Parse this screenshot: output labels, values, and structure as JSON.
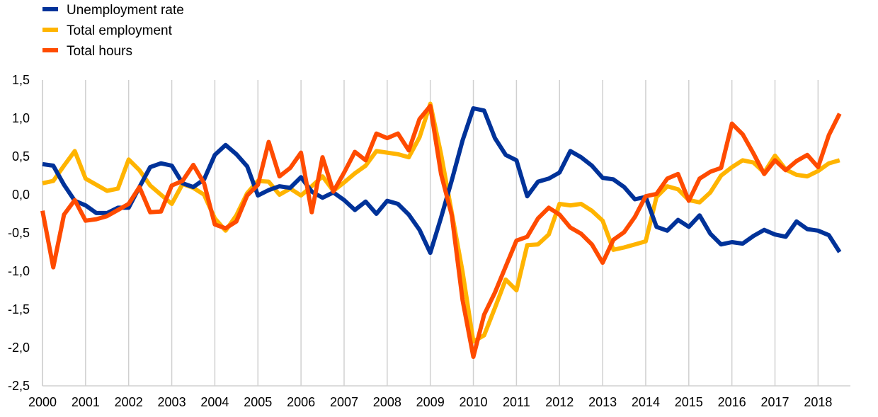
{
  "chart_data": {
    "type": "line",
    "title": "",
    "xlabel": "",
    "ylabel": "",
    "x_tick_labels": [
      "2000",
      "2001",
      "2002",
      "2003",
      "2004",
      "2005",
      "2006",
      "2007",
      "2008",
      "2009",
      "2010",
      "2011",
      "2012",
      "2013",
      "2014",
      "2015",
      "2016",
      "2017",
      "2018"
    ],
    "y_tick_labels": [
      "1,5",
      "1,0",
      "0,5",
      "0,0",
      "-0,5",
      "-1,0",
      "-1,5",
      "-2,0",
      "-2,5"
    ],
    "y_ticks": [
      1.5,
      1.0,
      0.5,
      0.0,
      -0.5,
      -1.0,
      -1.5,
      -2.0,
      -2.5
    ],
    "ylim": [
      -2.5,
      1.5
    ],
    "xlim": [
      2000.0,
      2018.75
    ],
    "grid": "vertical",
    "legend_position": "top-left",
    "x_quarters": [
      2000.0,
      2000.25,
      2000.5,
      2000.75,
      2001.0,
      2001.25,
      2001.5,
      2001.75,
      2002.0,
      2002.25,
      2002.5,
      2002.75,
      2003.0,
      2003.25,
      2003.5,
      2003.75,
      2004.0,
      2004.25,
      2004.5,
      2004.75,
      2005.0,
      2005.25,
      2005.5,
      2005.75,
      2006.0,
      2006.25,
      2006.5,
      2006.75,
      2007.0,
      2007.25,
      2007.5,
      2007.75,
      2008.0,
      2008.25,
      2008.5,
      2008.75,
      2009.0,
      2009.25,
      2009.5,
      2009.75,
      2010.0,
      2010.25,
      2010.5,
      2010.75,
      2011.0,
      2011.25,
      2011.5,
      2011.75,
      2012.0,
      2012.25,
      2012.5,
      2012.75,
      2013.0,
      2013.25,
      2013.5,
      2013.75,
      2014.0,
      2014.25,
      2014.5,
      2014.75,
      2015.0,
      2015.25,
      2015.5,
      2015.75,
      2016.0,
      2016.25,
      2016.5,
      2016.75,
      2017.0,
      2017.25,
      2017.5,
      2017.75,
      2018.0,
      2018.25,
      2018.5
    ],
    "series": [
      {
        "name": "Total employment",
        "color": "#FFB400",
        "values": [
          0.15,
          0.18,
          0.38,
          0.57,
          0.21,
          0.13,
          0.05,
          0.08,
          0.46,
          0.32,
          0.12,
          0.0,
          -0.12,
          0.14,
          0.09,
          0.0,
          -0.31,
          -0.47,
          -0.27,
          0.02,
          0.18,
          0.17,
          0.0,
          0.08,
          -0.01,
          0.11,
          0.24,
          0.05,
          0.16,
          0.28,
          0.38,
          0.57,
          0.55,
          0.53,
          0.49,
          0.75,
          1.19,
          0.53,
          -0.24,
          -1.01,
          -1.92,
          -1.84,
          -1.48,
          -1.11,
          -1.25,
          -0.66,
          -0.65,
          -0.52,
          -0.12,
          -0.14,
          -0.12,
          -0.21,
          -0.34,
          -0.72,
          -0.69,
          -0.65,
          -0.61,
          -0.03,
          0.11,
          0.07,
          -0.07,
          -0.1,
          0.03,
          0.25,
          0.36,
          0.45,
          0.42,
          0.29,
          0.51,
          0.33,
          0.26,
          0.24,
          0.31,
          0.41,
          0.45
        ]
      },
      {
        "name": "Unemployment rate",
        "color": "#003299",
        "values": [
          0.4,
          0.38,
          0.13,
          -0.08,
          -0.14,
          -0.24,
          -0.24,
          -0.17,
          -0.17,
          0.1,
          0.36,
          0.41,
          0.38,
          0.15,
          0.1,
          0.2,
          0.52,
          0.65,
          0.53,
          0.37,
          -0.01,
          0.06,
          0.11,
          0.09,
          0.23,
          0.04,
          -0.04,
          0.03,
          -0.07,
          -0.2,
          -0.09,
          -0.25,
          -0.08,
          -0.12,
          -0.26,
          -0.46,
          -0.76,
          -0.3,
          0.19,
          0.71,
          1.13,
          1.1,
          0.74,
          0.52,
          0.45,
          -0.02,
          0.17,
          0.21,
          0.29,
          0.57,
          0.49,
          0.38,
          0.22,
          0.2,
          0.1,
          -0.06,
          -0.03,
          -0.42,
          -0.47,
          -0.33,
          -0.42,
          -0.27,
          -0.51,
          -0.65,
          -0.62,
          -0.64,
          -0.54,
          -0.46,
          -0.52,
          -0.55,
          -0.35,
          -0.45,
          -0.47,
          -0.53,
          -0.75
        ]
      },
      {
        "name": "Total hours",
        "color": "#FF4B00",
        "values": [
          -0.21,
          -0.95,
          -0.26,
          -0.07,
          -0.34,
          -0.32,
          -0.28,
          -0.2,
          -0.12,
          0.1,
          -0.23,
          -0.22,
          0.12,
          0.18,
          0.39,
          0.15,
          -0.39,
          -0.44,
          -0.35,
          -0.01,
          0.13,
          0.69,
          0.24,
          0.35,
          0.55,
          -0.23,
          0.49,
          0.04,
          0.29,
          0.56,
          0.45,
          0.8,
          0.74,
          0.8,
          0.58,
          0.99,
          1.16,
          0.27,
          -0.27,
          -1.38,
          -2.12,
          -1.57,
          -1.28,
          -0.94,
          -0.6,
          -0.55,
          -0.31,
          -0.17,
          -0.26,
          -0.43,
          -0.51,
          -0.65,
          -0.89,
          -0.59,
          -0.49,
          -0.29,
          -0.02,
          0.01,
          0.21,
          0.27,
          -0.08,
          0.21,
          0.3,
          0.35,
          0.93,
          0.79,
          0.54,
          0.27,
          0.45,
          0.32,
          0.44,
          0.52,
          0.36,
          0.78,
          1.06
        ]
      }
    ]
  },
  "legend": [
    {
      "label": "Unemployment rate",
      "color": "#003299"
    },
    {
      "label": "Total employment",
      "color": "#FFB400"
    },
    {
      "label": "Total hours",
      "color": "#FF4B00"
    }
  ]
}
